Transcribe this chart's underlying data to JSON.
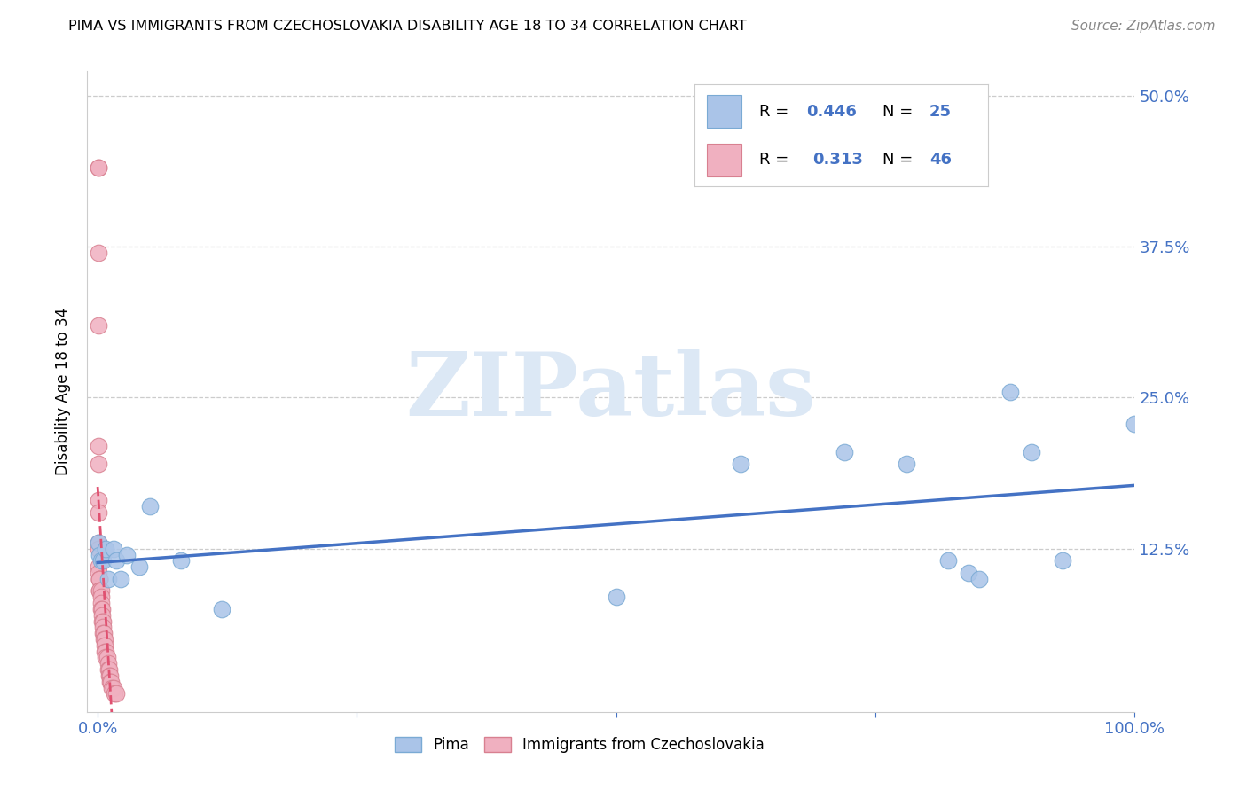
{
  "title": "PIMA VS IMMIGRANTS FROM CZECHOSLOVAKIA DISABILITY AGE 18 TO 34 CORRELATION CHART",
  "source": "Source: ZipAtlas.com",
  "ylabel": "Disability Age 18 to 34",
  "xlim": [
    -0.01,
    1.0
  ],
  "ylim": [
    -0.01,
    0.52
  ],
  "pima_color": "#aac4e8",
  "pima_edge": "#7aaad4",
  "czech_color": "#f0b0c0",
  "czech_edge": "#d88090",
  "pima_trend_color": "#4472c4",
  "czech_trend_color": "#e05070",
  "watermark_color": "#dce8f5",
  "pima_x": [
    0.001,
    0.002,
    0.003,
    0.005,
    0.008,
    0.01,
    0.015,
    0.018,
    0.022,
    0.028,
    0.04,
    0.05,
    0.08,
    0.12,
    0.5,
    0.62,
    0.72,
    0.78,
    0.82,
    0.84,
    0.85,
    0.88,
    0.9,
    0.93,
    1.0
  ],
  "pima_y": [
    0.13,
    0.12,
    0.115,
    0.115,
    0.125,
    0.1,
    0.125,
    0.115,
    0.1,
    0.12,
    0.11,
    0.16,
    0.115,
    0.075,
    0.085,
    0.195,
    0.205,
    0.195,
    0.115,
    0.105,
    0.1,
    0.255,
    0.205,
    0.115,
    0.228
  ],
  "czech_x": [
    0.001,
    0.001,
    0.001,
    0.001,
    0.001,
    0.001,
    0.001,
    0.001,
    0.001,
    0.001,
    0.001,
    0.001,
    0.002,
    0.002,
    0.002,
    0.002,
    0.002,
    0.003,
    0.003,
    0.003,
    0.003,
    0.004,
    0.004,
    0.004,
    0.005,
    0.005,
    0.005,
    0.006,
    0.006,
    0.007,
    0.007,
    0.007,
    0.008,
    0.008,
    0.009,
    0.01,
    0.01,
    0.011,
    0.011,
    0.012,
    0.012,
    0.013,
    0.014,
    0.015,
    0.016,
    0.018
  ],
  "czech_y": [
    0.44,
    0.44,
    0.37,
    0.31,
    0.21,
    0.195,
    0.165,
    0.155,
    0.13,
    0.125,
    0.11,
    0.105,
    0.1,
    0.1,
    0.1,
    0.09,
    0.09,
    0.09,
    0.085,
    0.08,
    0.075,
    0.075,
    0.07,
    0.065,
    0.065,
    0.06,
    0.055,
    0.055,
    0.05,
    0.05,
    0.045,
    0.04,
    0.04,
    0.035,
    0.035,
    0.03,
    0.025,
    0.025,
    0.02,
    0.02,
    0.015,
    0.015,
    0.01,
    0.01,
    0.005,
    0.005
  ]
}
